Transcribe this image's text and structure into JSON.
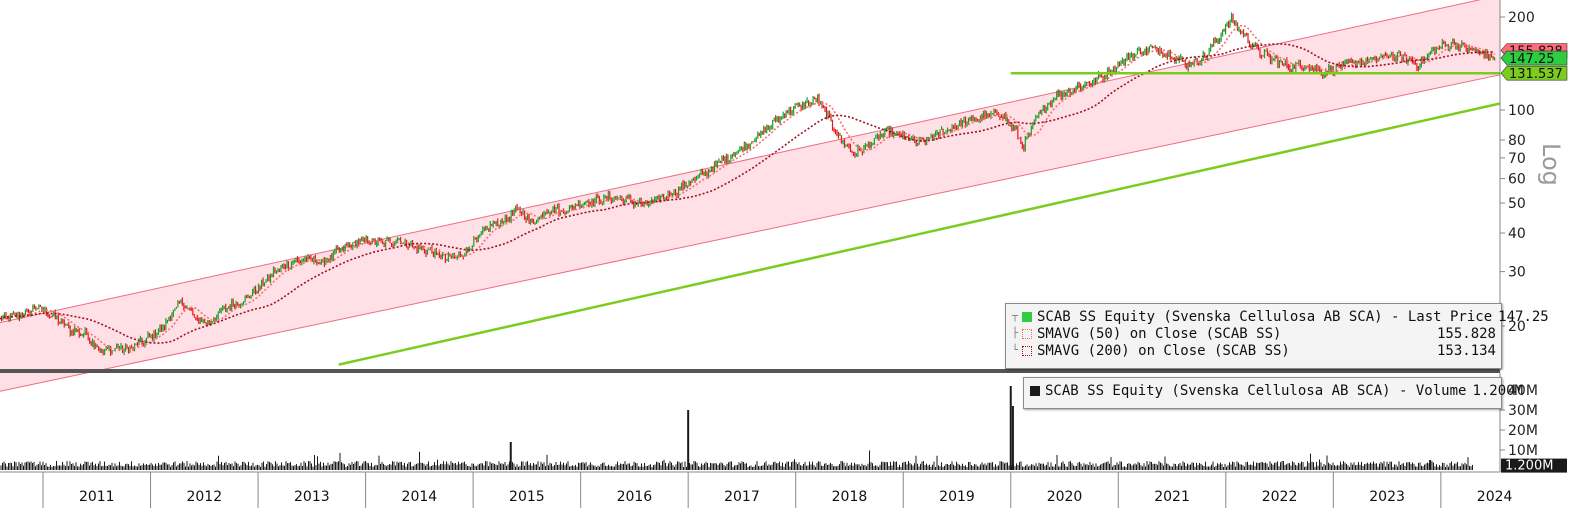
{
  "chart_data": [
    {
      "type": "line",
      "name": "price-panel",
      "y_scale": "log",
      "y_label": "Log",
      "yticks": [
        20,
        30,
        40,
        50,
        60,
        70,
        80,
        100,
        200
      ],
      "ylim": [
        15,
        230
      ],
      "x_range": [
        2010.6,
        2024.55
      ],
      "x_years": [
        "2011",
        "2012",
        "2013",
        "2014",
        "2015",
        "2016",
        "2017",
        "2018",
        "2019",
        "2020",
        "2021",
        "2022",
        "2023",
        "2024"
      ],
      "price_points": [
        [
          2010.6,
          21.0
        ],
        [
          2010.85,
          22.0
        ],
        [
          2010.95,
          23.0
        ],
        [
          2011.1,
          21.5
        ],
        [
          2011.25,
          19.5
        ],
        [
          2011.4,
          18.8
        ],
        [
          2011.55,
          16.5
        ],
        [
          2011.7,
          17.0
        ],
        [
          2011.8,
          16.8
        ],
        [
          2011.95,
          18.0
        ],
        [
          2012.1,
          19.5
        ],
        [
          2012.2,
          22.0
        ],
        [
          2012.3,
          24.0
        ],
        [
          2012.42,
          21.0
        ],
        [
          2012.55,
          20.5
        ],
        [
          2012.7,
          23.0
        ],
        [
          2012.85,
          24.0
        ],
        [
          2013.0,
          26.5
        ],
        [
          2013.15,
          30.0
        ],
        [
          2013.3,
          32.0
        ],
        [
          2013.45,
          33.0
        ],
        [
          2013.6,
          32.0
        ],
        [
          2013.75,
          35.0
        ],
        [
          2013.9,
          37.0
        ],
        [
          2014.0,
          38.0
        ],
        [
          2014.15,
          37.0
        ],
        [
          2014.3,
          38.0
        ],
        [
          2014.45,
          36.0
        ],
        [
          2014.6,
          35.0
        ],
        [
          2014.75,
          33.0
        ],
        [
          2014.9,
          34.0
        ],
        [
          2015.0,
          37.0
        ],
        [
          2015.15,
          42.0
        ],
        [
          2015.3,
          44.0
        ],
        [
          2015.42,
          48.0
        ],
        [
          2015.55,
          43.0
        ],
        [
          2015.7,
          48.0
        ],
        [
          2015.85,
          47.0
        ],
        [
          2016.0,
          50.0
        ],
        [
          2016.15,
          51.0
        ],
        [
          2016.3,
          52.0
        ],
        [
          2016.45,
          51.0
        ],
        [
          2016.6,
          49.0
        ],
        [
          2016.75,
          52.0
        ],
        [
          2016.9,
          55.0
        ],
        [
          2017.0,
          58.0
        ],
        [
          2017.15,
          62.0
        ],
        [
          2017.3,
          68.0
        ],
        [
          2017.45,
          73.0
        ],
        [
          2017.6,
          80.0
        ],
        [
          2017.75,
          88.0
        ],
        [
          2017.9,
          98.0
        ],
        [
          2018.05,
          103.0
        ],
        [
          2018.2,
          108.0
        ],
        [
          2018.3,
          95.0
        ],
        [
          2018.42,
          80.0
        ],
        [
          2018.55,
          72.0
        ],
        [
          2018.7,
          78.0
        ],
        [
          2018.85,
          85.0
        ],
        [
          2019.0,
          82.0
        ],
        [
          2019.15,
          78.0
        ],
        [
          2019.3,
          83.0
        ],
        [
          2019.45,
          88.0
        ],
        [
          2019.6,
          92.0
        ],
        [
          2019.75,
          95.0
        ],
        [
          2019.9,
          98.0
        ],
        [
          2020.05,
          85.0
        ],
        [
          2020.12,
          76.0
        ],
        [
          2020.25,
          95.0
        ],
        [
          2020.4,
          110.0
        ],
        [
          2020.6,
          118.0
        ],
        [
          2020.75,
          123.0
        ],
        [
          2020.9,
          132.0
        ],
        [
          2021.05,
          145.0
        ],
        [
          2021.2,
          155.0
        ],
        [
          2021.35,
          158.0
        ],
        [
          2021.5,
          150.0
        ],
        [
          2021.65,
          140.0
        ],
        [
          2021.8,
          148.0
        ],
        [
          2021.95,
          175.0
        ],
        [
          2022.05,
          198.0
        ],
        [
          2022.15,
          178.0
        ],
        [
          2022.3,
          155.0
        ],
        [
          2022.45,
          145.0
        ],
        [
          2022.6,
          138.0
        ],
        [
          2022.75,
          140.0
        ],
        [
          2022.9,
          132.0
        ],
        [
          2023.05,
          138.0
        ],
        [
          2023.2,
          142.0
        ],
        [
          2023.35,
          145.0
        ],
        [
          2023.5,
          150.0
        ],
        [
          2023.65,
          148.0
        ],
        [
          2023.8,
          140.0
        ],
        [
          2023.95,
          158.0
        ],
        [
          2024.1,
          165.0
        ],
        [
          2024.25,
          158.0
        ],
        [
          2024.4,
          152.0
        ],
        [
          2024.5,
          147.25
        ]
      ],
      "channel": {
        "lower_start": [
          2010.6,
          12.3
        ],
        "lower_end": [
          2024.55,
          130.0
        ],
        "upper_start": [
          2010.6,
          20.5
        ],
        "upper_end": [
          2024.55,
          235.0
        ]
      },
      "support_trend": {
        "start": [
          2013.75,
          15.0
        ],
        "end": [
          2024.55,
          105.0
        ]
      },
      "support_horizontal": {
        "start": [
          2020.0,
          131.537
        ],
        "end": [
          2024.55,
          131.537
        ]
      },
      "series": [
        {
          "name": "SCAB SS Equity (Svenska Cellulosa AB SCA) - Last Price",
          "last_label": "147.25"
        },
        {
          "name": "SMAVG (50)  on Close (SCAB SS)",
          "last_label": "155.828"
        },
        {
          "name": "SMAVG (200)  on Close (SCAB SS)",
          "last_label": "153.134"
        }
      ],
      "price_tags": [
        "155.828",
        "147.25",
        "131.537"
      ],
      "legend_placement": "bottom-right"
    },
    {
      "type": "bar",
      "name": "volume-panel",
      "yticks": [
        "40M",
        "30M",
        "20M",
        "10M"
      ],
      "ytick_values": [
        40,
        30,
        20,
        10
      ],
      "ylim_millions": [
        0,
        45
      ],
      "baseline_millions": 2.5,
      "spikes_millions": [
        [
          2015.35,
          14.0
        ],
        [
          2017.0,
          30.0
        ],
        [
          2020.0,
          42.0
        ],
        [
          2020.02,
          32.0
        ],
        [
          2023.9,
          5.0
        ]
      ],
      "series": [
        {
          "name": "SCAB SS Equity (Svenska Cellulosa AB SCA) - Volume",
          "last_label": "1.200M"
        }
      ],
      "last_tag": "1.200M",
      "legend_placement": "top-right"
    }
  ],
  "colors": {
    "price_up": "#1a9e2a",
    "price_down": "#e01b1b",
    "channel_fill": "#ffe0e6",
    "channel_edge": "#f06a80",
    "ma50": "#ff6b6b",
    "ma200": "#a01020",
    "support": "#7ccc1e",
    "volume": "#1a1a1a",
    "tag_ma": "#ff6b78",
    "tag_price": "#2ecc40",
    "tag_support": "#7ccc1e"
  }
}
